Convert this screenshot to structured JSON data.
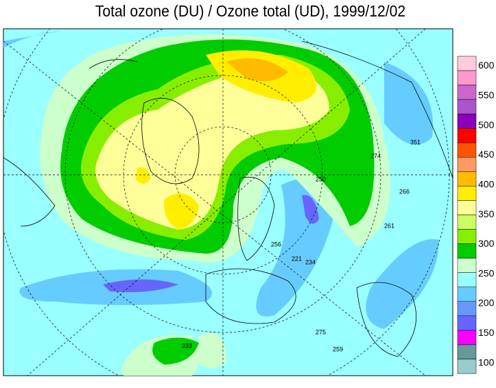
{
  "title": "Total ozone (DU) / Ozone total (UD), 1999/12/02",
  "colorbar": {
    "colors": [
      "#ffccdd",
      "#ff99cc",
      "#cc66cc",
      "#aa55cc",
      "#8800bb",
      "#ff0000",
      "#ff5500",
      "#ff9966",
      "#ffbb00",
      "#ffee00",
      "#ffff99",
      "#ccff66",
      "#88ee00",
      "#00cc00",
      "#ccffcc",
      "#99ffff",
      "#66ccff",
      "#6699ff",
      "#6666ff",
      "#ff00ff",
      "#669999",
      "#99cccc"
    ],
    "labels": [
      "600",
      "550",
      "500",
      "450",
      "400",
      "350",
      "300",
      "250",
      "200",
      "150",
      "100"
    ]
  },
  "contour_labels": [
    "333",
    "274",
    "266",
    "261",
    "250",
    "221",
    "234",
    "259",
    "275",
    "256",
    "351"
  ]
}
